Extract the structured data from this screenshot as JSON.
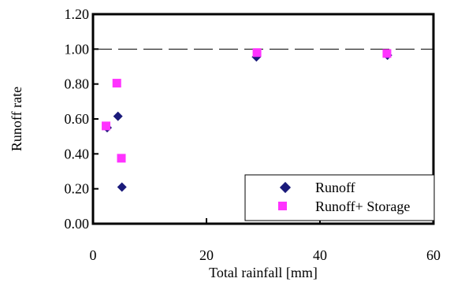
{
  "chart_data": {
    "type": "scatter",
    "xlabel": "Total rainfall [mm]",
    "ylabel": "Runoff rate",
    "xlim": [
      0,
      60
    ],
    "ylim": [
      0,
      1.2
    ],
    "x_ticks": [
      0,
      20,
      40,
      60
    ],
    "y_ticks": [
      0.0,
      0.2,
      0.4,
      0.6,
      0.8,
      1.0,
      1.2
    ],
    "x_tick_labels": [
      "0",
      "20",
      "40",
      "60"
    ],
    "y_tick_labels": [
      "0.00",
      "0.20",
      "0.40",
      "0.60",
      "0.80",
      "1.00",
      "1.20"
    ],
    "grid": false,
    "reference_line": {
      "y": 1.0,
      "style": "dashed"
    },
    "legend": {
      "placement": "bottom-right"
    },
    "series": [
      {
        "name": "Runoff",
        "marker": "diamond",
        "color": "#1a1a7a",
        "points": [
          {
            "x": 2.5,
            "y": 0.55
          },
          {
            "x": 4.4,
            "y": 0.615
          },
          {
            "x": 5.1,
            "y": 0.21
          },
          {
            "x": 28.8,
            "y": 0.955
          },
          {
            "x": 51.9,
            "y": 0.965
          }
        ]
      },
      {
        "name": "Runoff+ Storage",
        "marker": "square",
        "color": "#ff33ff",
        "points": [
          {
            "x": 2.3,
            "y": 0.56
          },
          {
            "x": 4.2,
            "y": 0.805
          },
          {
            "x": 5.0,
            "y": 0.375
          },
          {
            "x": 28.9,
            "y": 0.98
          },
          {
            "x": 51.8,
            "y": 0.975
          }
        ]
      }
    ]
  }
}
